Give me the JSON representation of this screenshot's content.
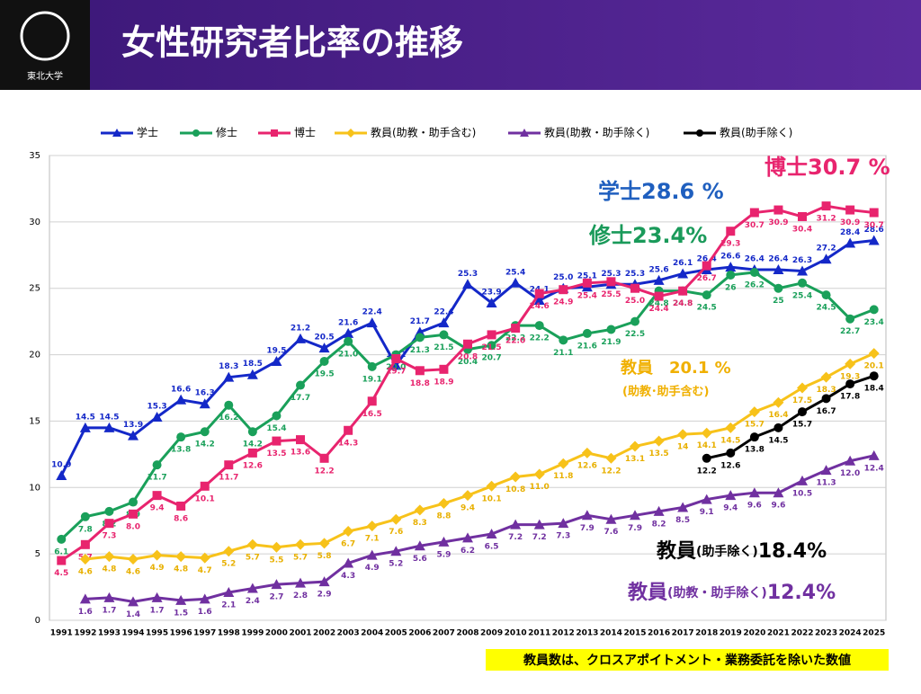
{
  "header": {
    "logo": "東北大学",
    "title": "女性研究者比率の推移"
  },
  "chart_data": {
    "type": "line",
    "categories": [
      "1991",
      "1992",
      "1993",
      "1994",
      "1995",
      "1996",
      "1997",
      "1998",
      "1999",
      "2000",
      "2001",
      "2002",
      "2003",
      "2004",
      "2005",
      "2006",
      "2007",
      "2008",
      "2009",
      "2010",
      "2011",
      "2012",
      "2013",
      "2014",
      "2015",
      "2016",
      "2017",
      "2018",
      "2019",
      "2020",
      "2021",
      "2022",
      "2023",
      "2024",
      "2025"
    ],
    "ylim": [
      0,
      35
    ],
    "yticks": [
      0,
      5,
      10,
      15,
      20,
      25,
      30,
      35
    ],
    "grid": true,
    "legend": "top",
    "series": [
      {
        "name": "学士",
        "color": "#1428c8",
        "marker": "triangle",
        "values": [
          10.9,
          14.5,
          14.5,
          13.9,
          15.3,
          16.6,
          16.3,
          18.3,
          18.5,
          19.5,
          21.2,
          20.5,
          21.6,
          22.4,
          19.2,
          21.7,
          22.4,
          25.3,
          23.9,
          25.4,
          24.1,
          25.0,
          25.1,
          25.3,
          25.3,
          25.6,
          26.1,
          26.4,
          26.6,
          26.4,
          26.4,
          26.3,
          27.2,
          28.4,
          28.6
        ],
        "value_labels": [
          "10.9",
          "14.5",
          "14.5",
          "13.9",
          "15.3",
          "16.6",
          "16.3",
          "18.3",
          "18.5",
          "19.5",
          "21.2",
          "20.5",
          "21.6",
          "22.4",
          "19.2",
          "21.7",
          "22.4",
          "25.3",
          "23.9",
          "25.4",
          "24.1",
          "25.0",
          "25.1",
          "25.3",
          "25.3",
          "25.6",
          "26.1",
          "26.4",
          "26.6",
          "26.4",
          "26.4",
          "26.3",
          "27.2",
          "28.4",
          "28.6"
        ]
      },
      {
        "name": "修士",
        "color": "#1aa05a",
        "marker": "circle",
        "values": [
          6.1,
          7.8,
          8.2,
          8.9,
          11.7,
          13.8,
          14.2,
          16.2,
          14.2,
          15.4,
          17.7,
          19.5,
          21.0,
          19.1,
          20.0,
          21.3,
          21.5,
          20.4,
          20.7,
          22.2,
          22.2,
          21.1,
          21.6,
          21.9,
          22.5,
          24.8,
          24.8,
          24.5,
          26,
          26.2,
          25,
          25.4,
          24.5,
          22.7,
          23.4
        ],
        "value_labels": [
          "6.1",
          "7.8",
          "8.2",
          "8.9",
          "11.7",
          "13.8",
          "14.2",
          "16.2",
          "14.2",
          "15.4",
          "17.7",
          "19.5",
          "21.0",
          "19.1",
          "20.0",
          "21.3",
          "21.5",
          "20.4",
          "20.7",
          "22.2",
          "22.2",
          "21.1",
          "21.6",
          "21.9",
          "22.5",
          "24.8",
          "24.8",
          "24.5",
          "26",
          "26.2",
          "25",
          "25.4",
          "24.5",
          "22.7",
          "23.4"
        ]
      },
      {
        "name": "博士",
        "color": "#e8246e",
        "marker": "square",
        "values": [
          4.5,
          5.7,
          7.3,
          8.0,
          9.4,
          8.6,
          10.1,
          11.7,
          12.6,
          13.5,
          13.6,
          12.2,
          14.3,
          16.5,
          19.7,
          18.8,
          18.9,
          20.8,
          21.5,
          22.0,
          24.6,
          24.9,
          25.4,
          25.5,
          25.0,
          24.4,
          24.8,
          26.7,
          29.3,
          30.7,
          30.9,
          30.4,
          31.2,
          30.9,
          30.7
        ],
        "value_labels": [
          "4.5",
          "5.7",
          "7.3",
          "8.0",
          "9.4",
          "8.6",
          "10.1",
          "11.7",
          "12.6",
          "13.5",
          "13.6",
          "12.2",
          "14.3",
          "16.5",
          "19.7",
          "18.8",
          "18.9",
          "20.8",
          "21.5",
          "22.0",
          "24.6",
          "24.9",
          "25.4",
          "25.5",
          "25.0",
          "24.4",
          "24.8",
          "26.7",
          "29.3",
          "30.7",
          "30.9",
          "30.4",
          "31.2",
          "30.9",
          "30.7"
        ]
      },
      {
        "name": "教員(助教・助手含む)",
        "color": "#f7c21a",
        "marker": "diamond",
        "values": [
          null,
          4.6,
          4.8,
          4.6,
          4.9,
          4.8,
          4.7,
          5.2,
          5.7,
          5.5,
          5.7,
          5.8,
          6.7,
          7.1,
          7.6,
          8.3,
          8.8,
          9.4,
          10.1,
          10.8,
          11.0,
          11.8,
          12.6,
          12.2,
          13.1,
          13.5,
          14,
          14.1,
          14.5,
          15.7,
          16.4,
          17.5,
          18.3,
          19.3,
          20.1
        ],
        "value_labels": [
          null,
          "4.6",
          "4.8",
          "4.6",
          "4.9",
          "4.8",
          "4.7",
          "5.2",
          "5.7",
          "5.5",
          "5.7",
          "5.8",
          "6.7",
          "7.1",
          "7.6",
          "8.3",
          "8.8",
          "9.4",
          "10.1",
          "10.8",
          "11.0",
          "11.8",
          "12.6",
          "12.2",
          "13.1",
          "13.5",
          "14",
          "14.1",
          "14.5",
          "15.7",
          "16.4",
          "17.5",
          "18.3",
          "19.3",
          "20.1"
        ]
      },
      {
        "name": "教員(助教・助手除く)",
        "color": "#7030a0",
        "marker": "triangle",
        "values": [
          null,
          1.6,
          1.7,
          1.4,
          1.7,
          1.5,
          1.6,
          2.1,
          2.4,
          2.7,
          2.8,
          2.9,
          4.3,
          4.9,
          5.2,
          5.6,
          5.9,
          6.2,
          6.5,
          7.2,
          7.2,
          7.3,
          7.9,
          7.6,
          7.9,
          8.2,
          8.5,
          9.1,
          9.4,
          9.6,
          9.6,
          10.5,
          11.3,
          12.0,
          12.4
        ],
        "value_labels": [
          null,
          "1.6",
          "1.7",
          "1.4",
          "1.7",
          "1.5",
          "1.6",
          "2.1",
          "2.4",
          "2.7",
          "2.8",
          "2.9",
          "4.3",
          "4.9",
          "5.2",
          "5.6",
          "5.9",
          "6.2",
          "6.5",
          "7.2",
          "7.2",
          "7.3",
          "7.9",
          "7.6",
          "7.9",
          "8.2",
          "8.5",
          "9.1",
          "9.4",
          "9.6",
          "9.6",
          "10.5",
          "11.3",
          "12.0",
          "12.4"
        ]
      },
      {
        "name": "教員(助手除く)",
        "color": "#000000",
        "marker": "circle",
        "values": [
          null,
          null,
          null,
          null,
          null,
          null,
          null,
          null,
          null,
          null,
          null,
          null,
          null,
          null,
          null,
          null,
          null,
          null,
          null,
          null,
          null,
          null,
          null,
          null,
          null,
          null,
          null,
          12.2,
          12.6,
          13.8,
          14.5,
          15.7,
          16.7,
          17.8,
          18.4
        ],
        "value_labels": [
          null,
          null,
          null,
          null,
          null,
          null,
          null,
          null,
          null,
          null,
          null,
          null,
          null,
          null,
          null,
          null,
          null,
          null,
          null,
          null,
          null,
          null,
          null,
          null,
          null,
          null,
          null,
          "12.2",
          "12.6",
          "13.8",
          "14.5",
          "15.7",
          "16.7",
          "17.8",
          "18.4"
        ]
      }
    ],
    "annotations": {
      "bachelor": "学士28.6 %",
      "master": "修士23.4%",
      "doctor": "博士30.7 %",
      "faculty_incl": "教員　20.1 %",
      "faculty_incl_note": "(助教･助手含む)",
      "faculty_excl_assist": [
        "教員",
        "(助手除く)",
        "18.4%"
      ],
      "faculty_excl_all": [
        "教員",
        "(助教・助手除く)",
        "12.4%"
      ]
    },
    "note": "教員数は、クロスアポイトメント・業務委託を除いた数値"
  }
}
